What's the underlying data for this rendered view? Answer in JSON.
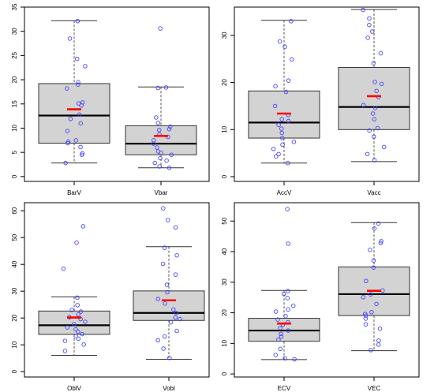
{
  "chart_data": [
    {
      "type": "boxplot",
      "panel": "top-left",
      "ylim": [
        -1,
        35
      ],
      "yticks": [
        "0",
        "5",
        "10",
        "15",
        "20",
        "25",
        "30",
        "35"
      ],
      "ytick_values": [
        0,
        5,
        10,
        15,
        20,
        25,
        30,
        35
      ],
      "categories": [
        "BarV",
        "Vbar"
      ],
      "boxes": [
        {
          "label": "BarV",
          "min": 2.8,
          "q1": 6.9,
          "median": 12.6,
          "q3": 19.2,
          "max": 32.2,
          "mean": 13.9,
          "points": [
            32.1,
            28.5,
            24.3,
            22.8,
            19.5,
            19.0,
            18.2,
            15.3,
            15.1,
            14.7,
            12.8,
            11.9,
            11.0,
            9.4,
            7.5,
            7.2,
            6.9,
            6.1,
            4.8,
            4.5,
            2.8
          ]
        },
        {
          "label": "Vbar",
          "min": 1.8,
          "q1": 4.5,
          "median": 6.8,
          "q3": 10.5,
          "max": 18.5,
          "mean": 8.4,
          "points": [
            30.6,
            18.4,
            18.3,
            12.2,
            11.1,
            10.3,
            9.8,
            9.6,
            8.7,
            8.2,
            7.5,
            6.8,
            6.0,
            5.2,
            4.9,
            4.5,
            3.8,
            3.3,
            2.8,
            2.1,
            1.8
          ]
        }
      ]
    },
    {
      "type": "boxplot",
      "panel": "top-right",
      "ylim": [
        -1,
        36
      ],
      "yticks": [
        "0",
        "10",
        "20",
        "30"
      ],
      "ytick_values": [
        0,
        10,
        20,
        30
      ],
      "categories": [
        "AccV",
        "Vacc"
      ],
      "boxes": [
        {
          "label": "AccV",
          "min": 2.9,
          "q1": 8.2,
          "median": 11.5,
          "q3": 18.2,
          "max": 33.2,
          "mean": 13.4,
          "points": [
            33.0,
            28.7,
            27.6,
            24.9,
            20.4,
            19.2,
            18.0,
            15.0,
            13.1,
            12.2,
            11.8,
            11.0,
            10.2,
            9.3,
            8.2,
            7.4,
            6.8,
            5.9,
            4.8,
            4.3,
            2.9
          ]
        },
        {
          "label": "Vacc",
          "min": 3.2,
          "q1": 10.0,
          "median": 14.8,
          "q3": 23.2,
          "max": 35.5,
          "mean": 17.1,
          "points": [
            35.4,
            33.6,
            32.2,
            30.8,
            29.5,
            26.2,
            24.1,
            20.1,
            19.7,
            18.2,
            16.9,
            15.2,
            14.6,
            13.4,
            12.2,
            10.3,
            9.8,
            8.5,
            6.3,
            4.8,
            3.5
          ]
        }
      ]
    },
    {
      "type": "boxplot",
      "panel": "bottom-left",
      "ylim": [
        -2,
        63
      ],
      "yticks": [
        "0",
        "10",
        "20",
        "30",
        "40",
        "50",
        "60"
      ],
      "ytick_values": [
        0,
        10,
        20,
        30,
        40,
        50,
        60
      ],
      "categories": [
        "OblV",
        "Vobl"
      ],
      "boxes": [
        {
          "label": "OblV",
          "min": 6.1,
          "q1": 13.9,
          "median": 17.3,
          "q3": 22.6,
          "max": 27.9,
          "mean": 20.2,
          "points": [
            54.2,
            48.1,
            38.4,
            27.6,
            24.8,
            23.0,
            22.4,
            21.3,
            20.3,
            19.6,
            18.6,
            17.7,
            16.5,
            15.8,
            14.9,
            14.0,
            13.2,
            12.3,
            11.5,
            10.1,
            7.7
          ]
        },
        {
          "label": "Vobl",
          "min": 4.6,
          "q1": 19.1,
          "median": 21.9,
          "q3": 30.1,
          "max": 46.6,
          "mean": 26.6,
          "points": [
            60.9,
            56.5,
            53.8,
            46.2,
            43.4,
            40.2,
            36.2,
            32.4,
            29.6,
            27.1,
            25.4,
            23.2,
            21.9,
            20.2,
            19.6,
            18.4,
            15.2,
            13.1,
            11.7,
            8.6,
            5.1
          ]
        }
      ]
    },
    {
      "type": "boxplot",
      "panel": "bottom-right",
      "ylim": [
        -1,
        56
      ],
      "yticks": [
        "0",
        "10",
        "20",
        "30",
        "40",
        "50"
      ],
      "ytick_values": [
        0,
        10,
        20,
        30,
        40,
        50
      ],
      "categories": [
        "ECV",
        "VEC"
      ],
      "boxes": [
        {
          "label": "ECV",
          "min": 4.7,
          "q1": 10.7,
          "median": 14.2,
          "q3": 18.2,
          "max": 27.3,
          "mean": 16.5,
          "points": [
            53.9,
            42.6,
            27.1,
            26.2,
            24.8,
            22.3,
            21.1,
            20.4,
            18.9,
            17.8,
            16.9,
            16.1,
            15.0,
            14.2,
            13.1,
            12.2,
            11.2,
            8.2,
            6.2,
            5.1,
            4.8
          ]
        },
        {
          "label": "VEC",
          "min": 7.6,
          "q1": 19.1,
          "median": 26.1,
          "q3": 35.0,
          "max": 49.5,
          "mean": 27.2,
          "points": [
            49.2,
            47.6,
            43.4,
            42.8,
            40.6,
            37.1,
            34.8,
            30.4,
            27.3,
            26.0,
            25.1,
            22.9,
            20.2,
            19.6,
            19.1,
            18.1,
            16.2,
            14.8,
            10.9,
            9.6,
            7.8
          ]
        }
      ]
    }
  ],
  "colors": {
    "box_fill": "#d3d3d3",
    "box_stroke": "#333333",
    "whisker": "#555555",
    "median": "#000000",
    "mean": "#ff0000",
    "points": "#4444ff",
    "frame": "#000000"
  }
}
